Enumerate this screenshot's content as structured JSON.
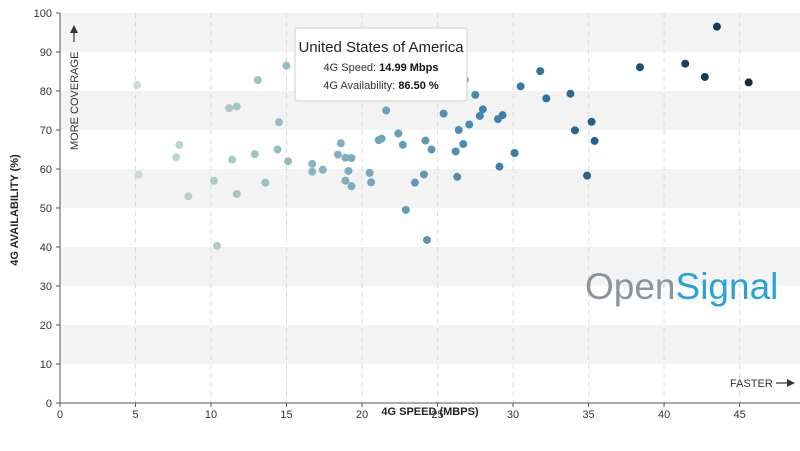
{
  "chart_data": {
    "type": "scatter",
    "title": "",
    "xlabel": "4G SPEED (MBPS)",
    "ylabel": "4G AVAILABILITY (%)",
    "xlim": [
      0,
      49
    ],
    "ylim": [
      0,
      100
    ],
    "xticks": [
      0,
      5,
      10,
      15,
      20,
      25,
      30,
      35,
      40,
      45
    ],
    "yticks": [
      0,
      10,
      20,
      30,
      40,
      50,
      60,
      70,
      80,
      90,
      100
    ],
    "grid": "vertical dashed lines, alternating horizontal bands",
    "annotations": {
      "y_direction": "MORE COVERAGE",
      "x_direction": "FASTER"
    },
    "logo": {
      "part1": "Open",
      "part2": "Signal"
    },
    "color_scale": [
      "#c9ddd3",
      "#9fc3c2",
      "#6fa5bd",
      "#3b7fab",
      "#1a5680",
      "#0f2d45"
    ],
    "tooltip": {
      "title": "United States of America",
      "speed_label": "4G Speed: ",
      "speed_value": "14.99 Mbps",
      "availability_label": "4G Availability: ",
      "availability_value": "86.50 %",
      "x": 14.99,
      "y": 86.5
    },
    "points": [
      {
        "x": 5.1,
        "y": 81.5
      },
      {
        "x": 5.2,
        "y": 58.5
      },
      {
        "x": 7.7,
        "y": 63.0
      },
      {
        "x": 7.9,
        "y": 66.2
      },
      {
        "x": 8.5,
        "y": 53.0
      },
      {
        "x": 10.2,
        "y": 57.0
      },
      {
        "x": 10.4,
        "y": 40.3
      },
      {
        "x": 11.2,
        "y": 75.6
      },
      {
        "x": 11.4,
        "y": 62.4
      },
      {
        "x": 11.7,
        "y": 76.0
      },
      {
        "x": 11.7,
        "y": 53.6
      },
      {
        "x": 12.9,
        "y": 63.8
      },
      {
        "x": 13.1,
        "y": 82.8
      },
      {
        "x": 13.6,
        "y": 56.5
      },
      {
        "x": 14.4,
        "y": 65.0
      },
      {
        "x": 14.5,
        "y": 72.0
      },
      {
        "x": 14.99,
        "y": 86.5
      },
      {
        "x": 15.1,
        "y": 62.0
      },
      {
        "x": 16.7,
        "y": 61.3
      },
      {
        "x": 16.7,
        "y": 59.3
      },
      {
        "x": 17.4,
        "y": 59.8
      },
      {
        "x": 18.4,
        "y": 63.7
      },
      {
        "x": 18.6,
        "y": 66.6
      },
      {
        "x": 18.9,
        "y": 62.9
      },
      {
        "x": 18.9,
        "y": 57.0
      },
      {
        "x": 19.1,
        "y": 59.5
      },
      {
        "x": 19.3,
        "y": 62.8
      },
      {
        "x": 19.3,
        "y": 55.6
      },
      {
        "x": 20.5,
        "y": 59.0
      },
      {
        "x": 20.6,
        "y": 56.6
      },
      {
        "x": 21.1,
        "y": 67.4
      },
      {
        "x": 21.3,
        "y": 67.8
      },
      {
        "x": 21.6,
        "y": 75.0
      },
      {
        "x": 22.4,
        "y": 69.1
      },
      {
        "x": 22.7,
        "y": 66.2
      },
      {
        "x": 22.9,
        "y": 49.5
      },
      {
        "x": 23.5,
        "y": 56.5
      },
      {
        "x": 24.1,
        "y": 58.6
      },
      {
        "x": 24.2,
        "y": 67.3
      },
      {
        "x": 24.3,
        "y": 41.8
      },
      {
        "x": 24.6,
        "y": 65.0
      },
      {
        "x": 25.4,
        "y": 74.2
      },
      {
        "x": 26.2,
        "y": 64.5
      },
      {
        "x": 26.3,
        "y": 58.0
      },
      {
        "x": 26.4,
        "y": 70.0
      },
      {
        "x": 26.7,
        "y": 66.4
      },
      {
        "x": 26.8,
        "y": 82.9
      },
      {
        "x": 27.1,
        "y": 71.4
      },
      {
        "x": 27.5,
        "y": 79.0
      },
      {
        "x": 27.8,
        "y": 73.6
      },
      {
        "x": 28.0,
        "y": 75.3
      },
      {
        "x": 29.0,
        "y": 72.8
      },
      {
        "x": 29.1,
        "y": 60.6
      },
      {
        "x": 29.3,
        "y": 73.8
      },
      {
        "x": 30.1,
        "y": 64.1
      },
      {
        "x": 30.5,
        "y": 81.2
      },
      {
        "x": 31.8,
        "y": 85.1
      },
      {
        "x": 32.2,
        "y": 78.1
      },
      {
        "x": 33.8,
        "y": 79.3
      },
      {
        "x": 34.1,
        "y": 69.9
      },
      {
        "x": 34.9,
        "y": 58.3
      },
      {
        "x": 35.2,
        "y": 72.1
      },
      {
        "x": 35.4,
        "y": 67.2
      },
      {
        "x": 38.4,
        "y": 86.1
      },
      {
        "x": 41.4,
        "y": 87.0
      },
      {
        "x": 42.7,
        "y": 83.6
      },
      {
        "x": 43.5,
        "y": 96.5
      },
      {
        "x": 45.6,
        "y": 82.2
      }
    ]
  }
}
